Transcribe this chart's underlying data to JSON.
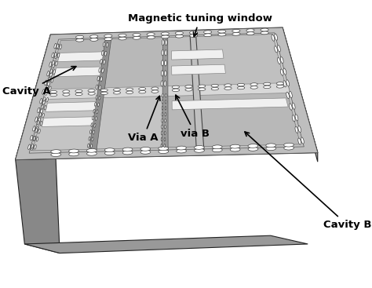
{
  "background": "#ffffff",
  "board_face_color": "#b8b8b8",
  "board_edge_color": "#222222",
  "inner_light_color": "#d4d4d4",
  "cavity_dark_color": "#a8a8a8",
  "cavity_light_color": "#d8d8d8",
  "strip_white_color": "#eeeeee",
  "strip_dark_color": "#888888",
  "side_bottom_color": "#888888",
  "side_right_color": "#999999",
  "via_fc": "#ffffff",
  "via_ec": "#333333",
  "label_magnetic": "Magnetic tuning window",
  "label_cavity_a": "Cavity A",
  "label_cavity_b": "Cavity B",
  "label_via_a": "Via A",
  "label_via_b": "via B",
  "fontsize": 9.5
}
